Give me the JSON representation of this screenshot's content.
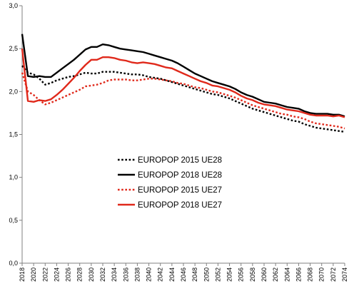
{
  "chart_data": {
    "type": "line",
    "title": "",
    "xlabel": "",
    "ylabel": "",
    "ylim": [
      0,
      3
    ],
    "yticks": [
      "0,0",
      "0,5",
      "1,0",
      "1,5",
      "2,0",
      "2,5",
      "3,0"
    ],
    "xlim": [
      2018,
      2074
    ],
    "xticks": [
      "2018",
      "2020",
      "2022",
      "2024",
      "2026",
      "2028",
      "2030",
      "2032",
      "2034",
      "2036",
      "2038",
      "2040",
      "2042",
      "2044",
      "2046",
      "2048",
      "2050",
      "2052",
      "2054",
      "2056",
      "2058",
      "2060",
      "2062",
      "2064",
      "2066",
      "2068",
      "2070",
      "2072",
      "2074"
    ],
    "grid": false,
    "legend_position": "center-left",
    "series": [
      {
        "name": "EUROPOP 2015 UE28",
        "color": "#000000",
        "style": "dotted",
        "points": [
          [
            2018,
            2.3
          ],
          [
            2019,
            2.22
          ],
          [
            2020,
            2.2
          ],
          [
            2021,
            2.15
          ],
          [
            2022,
            2.08
          ],
          [
            2023,
            2.1
          ],
          [
            2024,
            2.13
          ],
          [
            2025,
            2.15
          ],
          [
            2026,
            2.17
          ],
          [
            2027,
            2.18
          ],
          [
            2028,
            2.2
          ],
          [
            2029,
            2.22
          ],
          [
            2030,
            2.21
          ],
          [
            2031,
            2.21
          ],
          [
            2032,
            2.23
          ],
          [
            2033,
            2.23
          ],
          [
            2034,
            2.23
          ],
          [
            2035,
            2.22
          ],
          [
            2036,
            2.21
          ],
          [
            2037,
            2.2
          ],
          [
            2038,
            2.2
          ],
          [
            2039,
            2.19
          ],
          [
            2040,
            2.17
          ],
          [
            2041,
            2.16
          ],
          [
            2042,
            2.15
          ],
          [
            2043,
            2.13
          ],
          [
            2044,
            2.11
          ],
          [
            2045,
            2.09
          ],
          [
            2046,
            2.07
          ],
          [
            2047,
            2.05
          ],
          [
            2048,
            2.03
          ],
          [
            2049,
            2.01
          ],
          [
            2050,
            1.99
          ],
          [
            2051,
            1.97
          ],
          [
            2052,
            1.96
          ],
          [
            2053,
            1.94
          ],
          [
            2054,
            1.92
          ],
          [
            2055,
            1.89
          ],
          [
            2056,
            1.86
          ],
          [
            2057,
            1.83
          ],
          [
            2058,
            1.8
          ],
          [
            2059,
            1.78
          ],
          [
            2060,
            1.76
          ],
          [
            2061,
            1.74
          ],
          [
            2062,
            1.72
          ],
          [
            2063,
            1.7
          ],
          [
            2064,
            1.68
          ],
          [
            2065,
            1.66
          ],
          [
            2066,
            1.65
          ],
          [
            2067,
            1.62
          ],
          [
            2068,
            1.6
          ],
          [
            2069,
            1.58
          ],
          [
            2070,
            1.57
          ],
          [
            2071,
            1.56
          ],
          [
            2072,
            1.55
          ],
          [
            2073,
            1.54
          ],
          [
            2074,
            1.53
          ]
        ]
      },
      {
        "name": "EUROPOP 2018 UE28",
        "color": "#000000",
        "style": "solid",
        "points": [
          [
            2018,
            2.67
          ],
          [
            2019,
            2.18
          ],
          [
            2020,
            2.17
          ],
          [
            2021,
            2.18
          ],
          [
            2022,
            2.17
          ],
          [
            2023,
            2.17
          ],
          [
            2024,
            2.22
          ],
          [
            2025,
            2.27
          ],
          [
            2026,
            2.32
          ],
          [
            2027,
            2.37
          ],
          [
            2028,
            2.43
          ],
          [
            2029,
            2.49
          ],
          [
            2030,
            2.52
          ],
          [
            2031,
            2.52
          ],
          [
            2032,
            2.55
          ],
          [
            2033,
            2.54
          ],
          [
            2034,
            2.52
          ],
          [
            2035,
            2.5
          ],
          [
            2036,
            2.49
          ],
          [
            2037,
            2.48
          ],
          [
            2038,
            2.47
          ],
          [
            2039,
            2.46
          ],
          [
            2040,
            2.44
          ],
          [
            2041,
            2.42
          ],
          [
            2042,
            2.4
          ],
          [
            2043,
            2.38
          ],
          [
            2044,
            2.36
          ],
          [
            2045,
            2.33
          ],
          [
            2046,
            2.29
          ],
          [
            2047,
            2.25
          ],
          [
            2048,
            2.21
          ],
          [
            2049,
            2.18
          ],
          [
            2050,
            2.15
          ],
          [
            2051,
            2.12
          ],
          [
            2052,
            2.1
          ],
          [
            2053,
            2.08
          ],
          [
            2054,
            2.06
          ],
          [
            2055,
            2.03
          ],
          [
            2056,
            1.99
          ],
          [
            2057,
            1.96
          ],
          [
            2058,
            1.94
          ],
          [
            2059,
            1.91
          ],
          [
            2060,
            1.88
          ],
          [
            2061,
            1.87
          ],
          [
            2062,
            1.86
          ],
          [
            2063,
            1.84
          ],
          [
            2064,
            1.82
          ],
          [
            2065,
            1.81
          ],
          [
            2066,
            1.8
          ],
          [
            2067,
            1.77
          ],
          [
            2068,
            1.75
          ],
          [
            2069,
            1.74
          ],
          [
            2070,
            1.74
          ],
          [
            2071,
            1.74
          ],
          [
            2072,
            1.73
          ],
          [
            2073,
            1.73
          ],
          [
            2074,
            1.71
          ]
        ]
      },
      {
        "name": "EUROPOP 2015 UE27",
        "color": "#e0291b",
        "style": "dotted",
        "points": [
          [
            2018,
            2.22
          ],
          [
            2019,
            2.0
          ],
          [
            2020,
            1.96
          ],
          [
            2021,
            1.9
          ],
          [
            2022,
            1.85
          ],
          [
            2023,
            1.87
          ],
          [
            2024,
            1.9
          ],
          [
            2025,
            1.93
          ],
          [
            2026,
            1.96
          ],
          [
            2027,
            1.99
          ],
          [
            2028,
            2.02
          ],
          [
            2029,
            2.06
          ],
          [
            2030,
            2.07
          ],
          [
            2031,
            2.08
          ],
          [
            2032,
            2.1
          ],
          [
            2033,
            2.13
          ],
          [
            2034,
            2.14
          ],
          [
            2035,
            2.14
          ],
          [
            2036,
            2.14
          ],
          [
            2037,
            2.13
          ],
          [
            2038,
            2.13
          ],
          [
            2039,
            2.14
          ],
          [
            2040,
            2.15
          ],
          [
            2041,
            2.15
          ],
          [
            2042,
            2.14
          ],
          [
            2043,
            2.13
          ],
          [
            2044,
            2.12
          ],
          [
            2045,
            2.1
          ],
          [
            2046,
            2.09
          ],
          [
            2047,
            2.07
          ],
          [
            2048,
            2.05
          ],
          [
            2049,
            2.04
          ],
          [
            2050,
            2.02
          ],
          [
            2051,
            2.0
          ],
          [
            2052,
            1.99
          ],
          [
            2053,
            1.97
          ],
          [
            2054,
            1.95
          ],
          [
            2055,
            1.93
          ],
          [
            2056,
            1.9
          ],
          [
            2057,
            1.87
          ],
          [
            2058,
            1.84
          ],
          [
            2059,
            1.82
          ],
          [
            2060,
            1.8
          ],
          [
            2061,
            1.78
          ],
          [
            2062,
            1.76
          ],
          [
            2063,
            1.74
          ],
          [
            2064,
            1.73
          ],
          [
            2065,
            1.71
          ],
          [
            2066,
            1.7
          ],
          [
            2067,
            1.68
          ],
          [
            2068,
            1.65
          ],
          [
            2069,
            1.63
          ],
          [
            2070,
            1.62
          ],
          [
            2071,
            1.61
          ],
          [
            2072,
            1.6
          ],
          [
            2073,
            1.59
          ],
          [
            2074,
            1.57
          ]
        ]
      },
      {
        "name": "EUROPOP 2018 UE27",
        "color": "#e0291b",
        "style": "solid",
        "points": [
          [
            2018,
            2.5
          ],
          [
            2019,
            1.89
          ],
          [
            2020,
            1.88
          ],
          [
            2021,
            1.9
          ],
          [
            2022,
            1.89
          ],
          [
            2023,
            1.91
          ],
          [
            2024,
            1.96
          ],
          [
            2025,
            2.02
          ],
          [
            2026,
            2.09
          ],
          [
            2027,
            2.16
          ],
          [
            2028,
            2.24
          ],
          [
            2029,
            2.31
          ],
          [
            2030,
            2.37
          ],
          [
            2031,
            2.37
          ],
          [
            2032,
            2.4
          ],
          [
            2033,
            2.4
          ],
          [
            2034,
            2.39
          ],
          [
            2035,
            2.37
          ],
          [
            2036,
            2.36
          ],
          [
            2037,
            2.34
          ],
          [
            2038,
            2.33
          ],
          [
            2039,
            2.34
          ],
          [
            2040,
            2.33
          ],
          [
            2041,
            2.32
          ],
          [
            2042,
            2.3
          ],
          [
            2043,
            2.28
          ],
          [
            2044,
            2.27
          ],
          [
            2045,
            2.24
          ],
          [
            2046,
            2.21
          ],
          [
            2047,
            2.18
          ],
          [
            2048,
            2.15
          ],
          [
            2049,
            2.12
          ],
          [
            2050,
            2.1
          ],
          [
            2051,
            2.07
          ],
          [
            2052,
            2.06
          ],
          [
            2053,
            2.04
          ],
          [
            2054,
            2.02
          ],
          [
            2055,
            1.99
          ],
          [
            2056,
            1.95
          ],
          [
            2057,
            1.92
          ],
          [
            2058,
            1.9
          ],
          [
            2059,
            1.87
          ],
          [
            2060,
            1.85
          ],
          [
            2061,
            1.84
          ],
          [
            2062,
            1.83
          ],
          [
            2063,
            1.81
          ],
          [
            2064,
            1.79
          ],
          [
            2065,
            1.78
          ],
          [
            2066,
            1.77
          ],
          [
            2067,
            1.75
          ],
          [
            2068,
            1.73
          ],
          [
            2069,
            1.72
          ],
          [
            2070,
            1.72
          ],
          [
            2071,
            1.72
          ],
          [
            2072,
            1.71
          ],
          [
            2073,
            1.72
          ],
          [
            2074,
            1.7
          ]
        ]
      }
    ]
  }
}
